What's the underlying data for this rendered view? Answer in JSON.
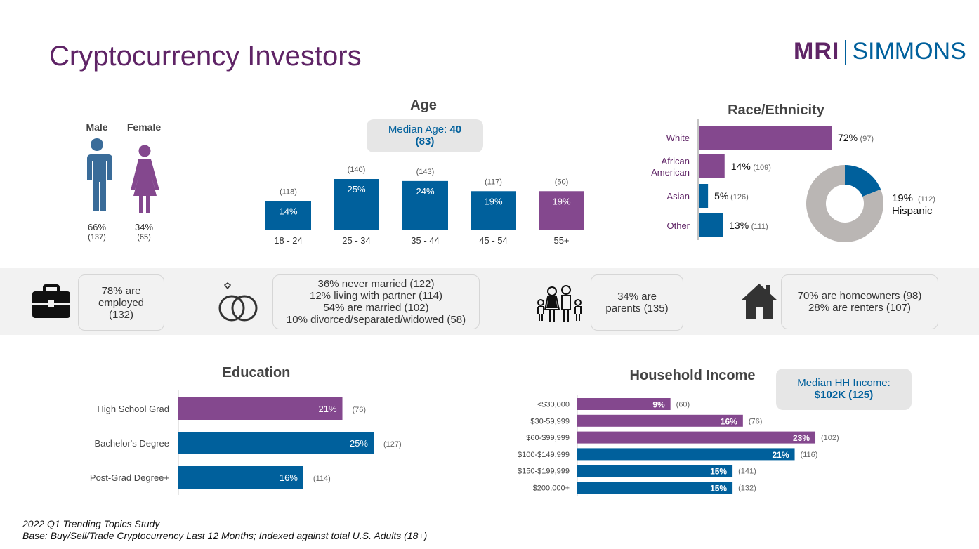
{
  "title": "Cryptocurrency Investors",
  "logo": {
    "left": "MRI",
    "right": "SIMMONS"
  },
  "gender": {
    "male": {
      "label": "Male",
      "pct": "66%",
      "index": "(137)"
    },
    "female": {
      "label": "Female",
      "pct": "34%",
      "index": "(65)"
    }
  },
  "age_box": {
    "line1": "Median Age: ",
    "value": "40",
    "line2": "(83)"
  },
  "stats": {
    "employed": [
      "78% are",
      "employed",
      "(132)"
    ],
    "marital": [
      "36% never married (122)",
      "12% living with partner (114)",
      "54% are married (102)",
      "10% divorced/separated/widowed (58)"
    ],
    "parents": [
      "34% are",
      "parents (135)"
    ],
    "home": [
      "70% are homeowners (98)",
      "28% are renters (107)"
    ]
  },
  "income_box": {
    "line1": "Median HH Income:",
    "line2": "$102K (125)"
  },
  "footer": [
    "2022 Q1 Trending Topics Study",
    "Base: Buy/Sell/Trade Cryptocurrency Last 12 Months; Indexed against total U.S. Adults (18+)"
  ],
  "colors": {
    "blue": "#00609c",
    "purple": "#84488e",
    "gray": "#bab6b4"
  },
  "chart_data": [
    {
      "type": "bar",
      "title": "Age",
      "categories": [
        "18 - 24",
        "25 - 34",
        "35 - 44",
        "45 - 54",
        "55+"
      ],
      "values": [
        14,
        25,
        24,
        19,
        19
      ],
      "labels": [
        "14%",
        "25%",
        "24%",
        "19%",
        "19%"
      ],
      "index": [
        "(118)",
        "(140)",
        "(143)",
        "(117)",
        "(50)"
      ],
      "colors": [
        "blue",
        "blue",
        "blue",
        "blue",
        "purple"
      ]
    },
    {
      "type": "bar",
      "orientation": "horizontal",
      "title": "Race/Ethnicity",
      "categories": [
        [
          "White"
        ],
        [
          "African",
          "American"
        ],
        [
          "Asian"
        ],
        [
          "Other"
        ]
      ],
      "values": [
        72,
        14,
        5,
        13
      ],
      "labels": [
        "72%",
        "14%",
        "5%",
        "13%"
      ],
      "index": [
        "(97)",
        "(109)",
        "(126)",
        "(111)"
      ],
      "colors": [
        "purple",
        "purple",
        "blue",
        "blue"
      ]
    },
    {
      "type": "pie",
      "donut": true,
      "values": [
        19,
        81
      ],
      "label": "19%",
      "index": "(112)",
      "name": "Hispanic",
      "colors": [
        "blue",
        "gray"
      ]
    },
    {
      "type": "bar",
      "orientation": "horizontal",
      "title": "Education",
      "categories": [
        "High School Grad",
        "Bachelor's Degree",
        "Post-Grad Degree+"
      ],
      "values": [
        21,
        25,
        16
      ],
      "labels": [
        "21%",
        "25%",
        "16%"
      ],
      "index": [
        "(76)",
        "(127)",
        "(114)"
      ],
      "colors": [
        "purple",
        "blue",
        "blue"
      ]
    },
    {
      "type": "bar",
      "orientation": "horizontal",
      "title": "Household Income",
      "categories": [
        "<$30,000",
        "$30-59,999",
        "$60-$99,999",
        "$100-$149,999",
        "$150-$199,999",
        "$200,000+"
      ],
      "values": [
        9,
        16,
        23,
        21,
        15,
        15
      ],
      "labels": [
        "9%",
        "16%",
        "23%",
        "21%",
        "15%",
        "15%"
      ],
      "index": [
        "(60)",
        "(76)",
        "(102)",
        "(116)",
        "(141)",
        "(132)"
      ],
      "colors": [
        "purple",
        "purple",
        "purple",
        "blue",
        "blue",
        "blue"
      ]
    }
  ]
}
